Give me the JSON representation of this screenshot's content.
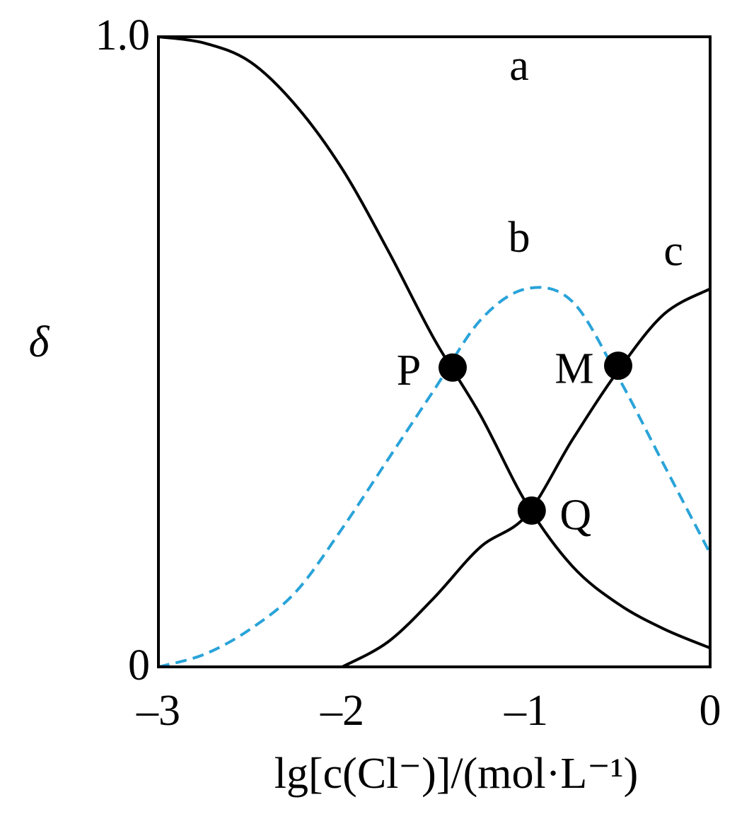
{
  "chart_data": {
    "type": "line",
    "x_label": "lg[c(Cl⁻)]/(mol·L⁻¹)",
    "y_label": "δ",
    "x": [
      -3,
      -2.75,
      -2.5,
      -2.25,
      -2,
      -1.75,
      -1.5,
      -1.25,
      -1,
      -0.75,
      -0.5,
      -0.25,
      0
    ],
    "series": [
      {
        "name": "a",
        "color": "#000000",
        "dashed": false,
        "values": [
          1.0,
          0.99,
          0.96,
          0.89,
          0.79,
          0.66,
          0.52,
          0.4,
          0.26,
          0.16,
          0.1,
          0.06,
          0.03
        ]
      },
      {
        "name": "b",
        "color": "#29a3d9",
        "dashed": true,
        "values": [
          0,
          0.02,
          0.06,
          0.12,
          0.22,
          0.33,
          0.44,
          0.55,
          0.6,
          0.58,
          0.46,
          0.32,
          0.18
        ]
      },
      {
        "name": "c",
        "color": "#000000",
        "dashed": false,
        "values": [
          null,
          null,
          null,
          null,
          0,
          0.04,
          0.11,
          0.19,
          0.24,
          0.36,
          0.47,
          0.56,
          0.6
        ]
      }
    ],
    "points": [
      {
        "label": "P",
        "x": -1.4,
        "y": 0.475
      },
      {
        "label": "Q",
        "x": -0.97,
        "y": 0.248
      },
      {
        "label": "M",
        "x": -0.5,
        "y": 0.478
      }
    ],
    "xlim": [
      -3,
      0
    ],
    "ylim": [
      0,
      1
    ],
    "xticks": [
      {
        "value": -3,
        "label": "–3"
      },
      {
        "value": -2,
        "label": "–2"
      },
      {
        "value": -1,
        "label": "–1"
      },
      0
    ],
    "yticks": [
      0,
      {
        "value": 1,
        "label": "1.0"
      }
    ]
  }
}
